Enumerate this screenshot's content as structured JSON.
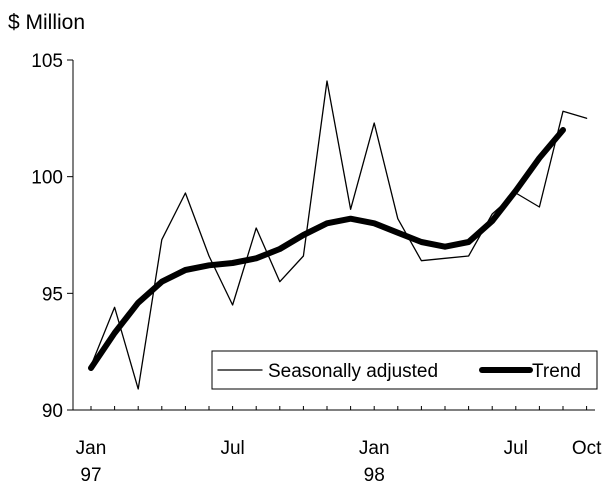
{
  "chart_data": {
    "type": "line",
    "title": "",
    "ylabel": "$ Million",
    "xlabel": "",
    "ylim": [
      90,
      105
    ],
    "yticks": [
      90,
      95,
      100,
      105
    ],
    "grid": false,
    "legend_position": "bottom-right",
    "x": [
      "Jan 97",
      "Feb 97",
      "Mar 97",
      "Apr 97",
      "May 97",
      "Jun 97",
      "Jul 97",
      "Aug 97",
      "Sep 97",
      "Oct 97",
      "Nov 97",
      "Dec 97",
      "Jan 98",
      "Feb 98",
      "Mar 98",
      "Apr 98",
      "May 98",
      "Jun 98",
      "Jul 98",
      "Aug 98",
      "Sep 98",
      "Oct 98"
    ],
    "xtick_labels": [
      {
        "index": 0,
        "line1": "Jan",
        "line2": "97"
      },
      {
        "index": 6,
        "line1": "Jul",
        "line2": ""
      },
      {
        "index": 12,
        "line1": "Jan",
        "line2": "98"
      },
      {
        "index": 18,
        "line1": "Jul",
        "line2": ""
      },
      {
        "index": 21,
        "line1": "Oct",
        "line2": ""
      }
    ],
    "series": [
      {
        "name": "Seasonally adjusted",
        "style": "thin",
        "color": "#000000",
        "values": [
          91.9,
          94.4,
          90.9,
          97.3,
          99.3,
          96.6,
          94.5,
          97.8,
          95.5,
          96.6,
          104.1,
          98.6,
          102.3,
          98.2,
          96.4,
          96.5,
          96.6,
          98.4,
          99.3,
          98.7,
          102.8,
          102.5
        ]
      },
      {
        "name": "Trend",
        "style": "thick",
        "color": "#000000",
        "values": [
          91.8,
          93.3,
          94.6,
          95.5,
          96.0,
          96.2,
          96.3,
          96.5,
          96.9,
          97.5,
          98.0,
          98.2,
          98.0,
          97.6,
          97.2,
          97.0,
          97.2,
          98.1,
          99.4,
          100.8,
          102.0,
          null
        ]
      }
    ]
  }
}
